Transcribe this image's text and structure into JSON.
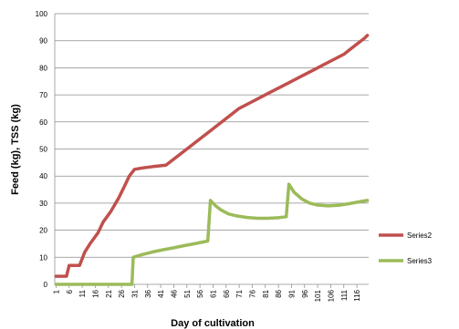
{
  "chart_data": {
    "type": "line",
    "title": "",
    "xlabel": "Day of cultivation",
    "ylabel": "Feed (kg), TSS (kg)",
    "ylim": [
      0,
      100
    ],
    "yticks": [
      0,
      10,
      20,
      30,
      40,
      50,
      60,
      70,
      80,
      90,
      100
    ],
    "xlim": [
      1,
      120
    ],
    "xticks": [
      "1",
      "6",
      "11",
      "16",
      "21",
      "26",
      "31",
      "36",
      "41",
      "46",
      "51",
      "56",
      "61",
      "66",
      "71",
      "76",
      "81",
      "86",
      "91",
      "96",
      "101",
      "106",
      "111",
      "116"
    ],
    "grid": "horizontal",
    "legend": "right",
    "series": [
      {
        "name": "Series2",
        "color": "#C0504D",
        "points": [
          [
            1,
            3
          ],
          [
            5,
            3
          ],
          [
            6,
            7
          ],
          [
            10,
            7
          ],
          [
            12,
            12
          ],
          [
            14,
            15
          ],
          [
            17,
            19
          ],
          [
            19,
            23
          ],
          [
            22,
            27
          ],
          [
            25,
            32
          ],
          [
            27,
            36
          ],
          [
            29,
            40
          ],
          [
            31,
            42.5
          ],
          [
            34,
            43
          ],
          [
            38,
            43.5
          ],
          [
            43,
            44
          ],
          [
            47,
            47
          ],
          [
            51,
            50
          ],
          [
            55,
            53
          ],
          [
            59,
            56
          ],
          [
            63,
            59
          ],
          [
            67,
            62
          ],
          [
            71,
            65
          ],
          [
            75,
            67
          ],
          [
            79,
            69
          ],
          [
            83,
            71
          ],
          [
            87,
            73
          ],
          [
            91,
            75
          ],
          [
            95,
            77
          ],
          [
            99,
            79
          ],
          [
            103,
            81
          ],
          [
            107,
            83
          ],
          [
            111,
            85
          ],
          [
            115,
            88
          ],
          [
            119,
            91
          ],
          [
            120,
            92
          ]
        ]
      },
      {
        "name": "Series3",
        "color": "#9BBB59",
        "points": [
          [
            1,
            0
          ],
          [
            30,
            0
          ],
          [
            30.5,
            10
          ],
          [
            34,
            11
          ],
          [
            38,
            12
          ],
          [
            42,
            12.8
          ],
          [
            46,
            13.5
          ],
          [
            50,
            14.3
          ],
          [
            54,
            15
          ],
          [
            59,
            16
          ],
          [
            60,
            31
          ],
          [
            62,
            29
          ],
          [
            64,
            27.5
          ],
          [
            67,
            26
          ],
          [
            70,
            25.3
          ],
          [
            74,
            24.7
          ],
          [
            78,
            24.4
          ],
          [
            82,
            24.4
          ],
          [
            86,
            24.6
          ],
          [
            89,
            25
          ],
          [
            90,
            37
          ],
          [
            92,
            34
          ],
          [
            95,
            31.5
          ],
          [
            98,
            30
          ],
          [
            101,
            29.3
          ],
          [
            105,
            29
          ],
          [
            109,
            29.2
          ],
          [
            113,
            29.8
          ],
          [
            117,
            30.5
          ],
          [
            120,
            31
          ]
        ]
      }
    ]
  }
}
